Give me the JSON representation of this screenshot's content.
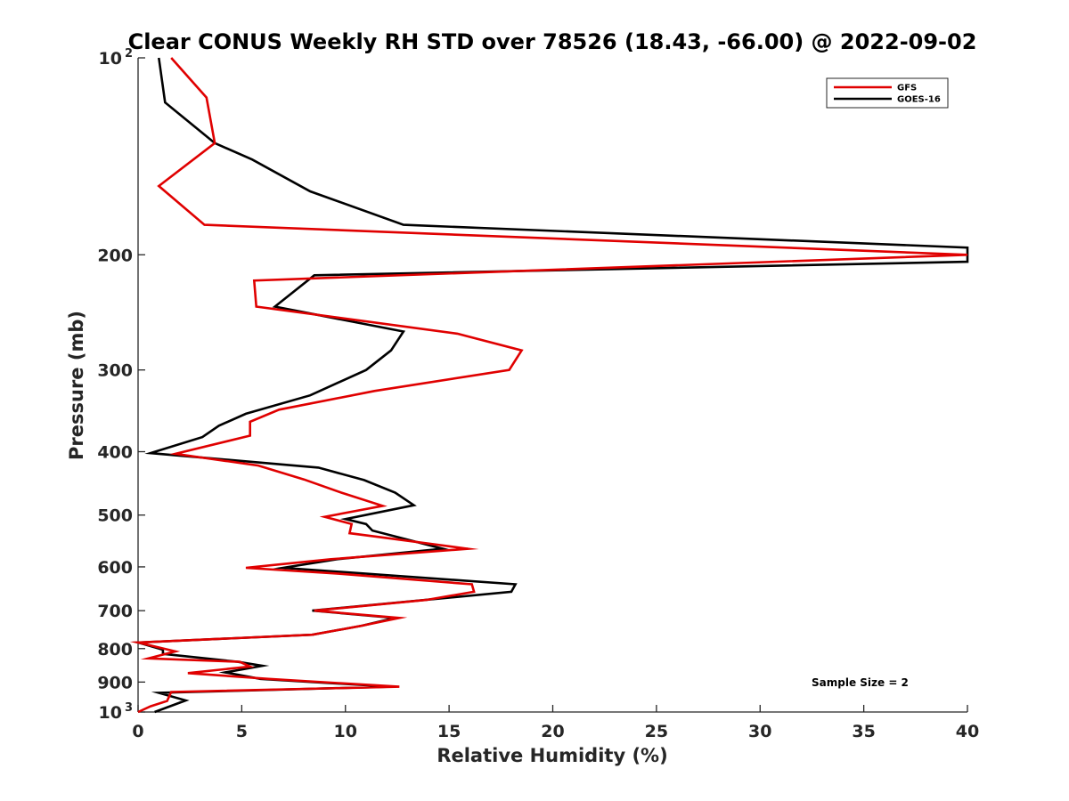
{
  "chart_data": {
    "type": "line",
    "title": "Clear CONUS Weekly RH STD over 78526 (18.43, -66.00) @ 2022-09-02",
    "xlabel": "Relative Humidity (%)",
    "ylabel": "Pressure (mb)",
    "xlim": [
      0,
      40
    ],
    "ylim": [
      100,
      1000
    ],
    "y_scale": "log",
    "y_reversed": true,
    "x_ticks": [
      "0",
      "5",
      "10",
      "15",
      "20",
      "25",
      "30",
      "35",
      "40"
    ],
    "y_ticks": [
      {
        "value": 100,
        "base": "10",
        "exp": "2"
      },
      {
        "value": 200,
        "label": "200"
      },
      {
        "value": 300,
        "label": "300"
      },
      {
        "value": 400,
        "label": "400"
      },
      {
        "value": 500,
        "label": "500"
      },
      {
        "value": 600,
        "label": "600"
      },
      {
        "value": 700,
        "label": "700"
      },
      {
        "value": 800,
        "label": "800"
      },
      {
        "value": 900,
        "label": "900"
      },
      {
        "value": 1000,
        "base": "10",
        "exp": "3"
      }
    ],
    "legend_position": "top-right",
    "grid": false,
    "annotation": "Sample Size = 2",
    "series": [
      {
        "name": "GFS",
        "color": "#e00000",
        "points": [
          [
            1.6,
            100
          ],
          [
            3.3,
            115
          ],
          [
            3.7,
            135
          ],
          [
            1.0,
            157
          ],
          [
            3.2,
            180
          ],
          [
            40.0,
            200
          ],
          [
            5.6,
            219
          ],
          [
            5.7,
            240
          ],
          [
            15.4,
            264
          ],
          [
            18.5,
            280
          ],
          [
            17.9,
            300
          ],
          [
            11.4,
            323
          ],
          [
            6.8,
            345
          ],
          [
            5.4,
            360
          ],
          [
            5.4,
            378
          ],
          [
            1.8,
            403
          ],
          [
            5.8,
            420
          ],
          [
            8.0,
            441
          ],
          [
            9.8,
            462
          ],
          [
            11.8,
            484
          ],
          [
            9.0,
            503
          ],
          [
            10.3,
            516
          ],
          [
            10.2,
            533
          ],
          [
            11.6,
            540
          ],
          [
            15.9,
            563
          ],
          [
            9.3,
            584
          ],
          [
            5.2,
            602
          ],
          [
            9.8,
            615
          ],
          [
            16.1,
            638
          ],
          [
            16.2,
            655
          ],
          [
            13.9,
            674
          ],
          [
            8.5,
            700
          ],
          [
            12.6,
            718
          ],
          [
            10.8,
            738
          ],
          [
            8.4,
            762
          ],
          [
            0,
            783
          ],
          [
            1.8,
            808
          ],
          [
            0.5,
            828
          ],
          [
            4.9,
            838
          ],
          [
            5.4,
            852
          ],
          [
            2.4,
            872
          ],
          [
            6.3,
            890
          ],
          [
            12.6,
            915
          ],
          [
            1.6,
            932
          ],
          [
            1.4,
            962
          ],
          [
            0.6,
            980
          ],
          [
            0,
            1000
          ]
        ]
      },
      {
        "name": "GOES-16",
        "color": "#000000",
        "points": [
          [
            1.0,
            100
          ],
          [
            1.3,
            117
          ],
          [
            3.7,
            135
          ],
          [
            5.5,
            143
          ],
          [
            8.3,
            160
          ],
          [
            12.8,
            180
          ],
          [
            40.0,
            195
          ],
          [
            40.0,
            205
          ],
          [
            8.5,
            215
          ],
          [
            6.6,
            240
          ],
          [
            12.8,
            262
          ],
          [
            12.2,
            280
          ],
          [
            11.0,
            300
          ],
          [
            8.3,
            328
          ],
          [
            5.2,
            350
          ],
          [
            3.9,
            365
          ],
          [
            3.1,
            380
          ],
          [
            0.6,
            402
          ],
          [
            8.7,
            423
          ],
          [
            10.9,
            442
          ],
          [
            12.4,
            462
          ],
          [
            13.3,
            483
          ],
          [
            10.0,
            507
          ],
          [
            11.0,
            516
          ],
          [
            11.3,
            528
          ],
          [
            14.7,
            563
          ],
          [
            9.6,
            584
          ],
          [
            7.0,
            602
          ],
          [
            18.2,
            638
          ],
          [
            18.0,
            655
          ],
          [
            8.4,
            700
          ],
          [
            12.4,
            718
          ],
          [
            10.8,
            738
          ],
          [
            8.4,
            762
          ],
          [
            0,
            783
          ],
          [
            1.2,
            803
          ],
          [
            1.2,
            815
          ],
          [
            4.8,
            838
          ],
          [
            6.0,
            850
          ],
          [
            4.2,
            870
          ],
          [
            5.9,
            890
          ],
          [
            12.2,
            915
          ],
          [
            1.0,
            935
          ],
          [
            2.3,
            960
          ],
          [
            0.8,
            1000
          ]
        ]
      }
    ]
  }
}
